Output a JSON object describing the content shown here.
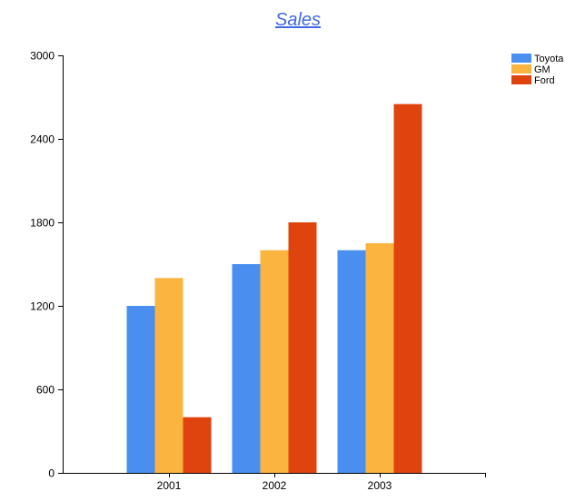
{
  "chart_data": {
    "type": "bar",
    "title": "Sales",
    "xlabel": "",
    "ylabel": "",
    "categories": [
      "2001",
      "2002",
      "2003"
    ],
    "series": [
      {
        "name": "Toyota",
        "values": [
          1200,
          1500,
          1600
        ]
      },
      {
        "name": "GM",
        "values": [
          1400,
          1600,
          1650
        ]
      },
      {
        "name": "Ford",
        "values": [
          400,
          1800,
          2650
        ]
      }
    ],
    "ylim": [
      0,
      3000
    ],
    "yticks": [
      0,
      600,
      1200,
      1800,
      2400,
      3000
    ],
    "grid": false,
    "legend_position": "top-right",
    "colors": {
      "Toyota": "#4a8ff0",
      "GM": "#fbb43f",
      "Ford": "#e0440e"
    }
  }
}
